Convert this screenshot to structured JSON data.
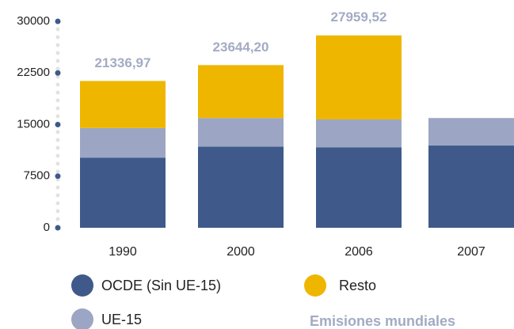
{
  "chart_data": {
    "type": "stacked_bar",
    "categories": [
      "1990",
      "2000",
      "2006",
      "2007"
    ],
    "series": [
      {
        "name": "OCDE (Sin UE-15)",
        "color": "#3f5a8a",
        "values": [
          10200,
          11800,
          11700,
          11950
        ]
      },
      {
        "name": "UE-15",
        "color": "#9ca6c4",
        "values": [
          4300,
          4150,
          4050,
          4000
        ]
      },
      {
        "name": "Resto",
        "color": "#efb600",
        "values": [
          6837,
          7694,
          12210,
          null
        ]
      }
    ],
    "totals_name": "Emisiones mundiales",
    "totals": [
      21336.97,
      23644.2,
      27959.52,
      null
    ],
    "total_labels": [
      "21336,97",
      "23644,20",
      "27959,52",
      null
    ],
    "ylim": [
      0,
      30000
    ],
    "yticks": [
      0,
      7500,
      15000,
      22500,
      30000
    ],
    "grid": false
  }
}
